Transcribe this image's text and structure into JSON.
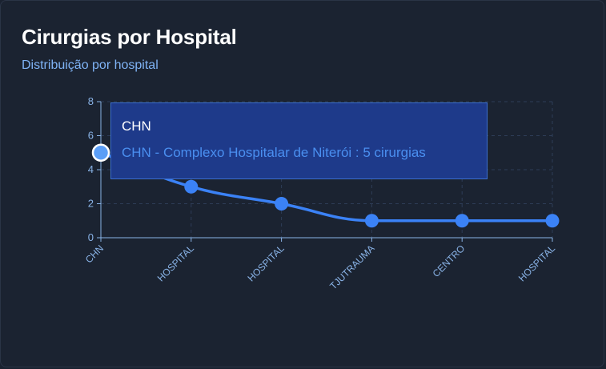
{
  "header": {
    "title": "Cirurgias por Hospital",
    "subtitle": "Distribuição por hospital"
  },
  "colors": {
    "background": "#1b2331",
    "line": "#3b82f6",
    "axis": "#8ab4e8",
    "grid": "#2e3d57",
    "tooltip_bg": "#1e3a8a"
  },
  "tooltip": {
    "title": "CHN",
    "line": "CHN - Complexo Hospitalar de Niterói : 5 cirurgias"
  },
  "chart_data": {
    "type": "line",
    "categories": [
      "CHN",
      "HOSPITAL",
      "HOSPITAL",
      "TJUTRAUMA",
      "CENTRO",
      "HOSPITAL"
    ],
    "values": [
      5,
      3,
      2,
      1,
      1,
      1
    ],
    "yticks": [
      0,
      2,
      4,
      6,
      8
    ],
    "ylim": [
      0,
      8
    ],
    "grid": true,
    "active_index": 0
  }
}
